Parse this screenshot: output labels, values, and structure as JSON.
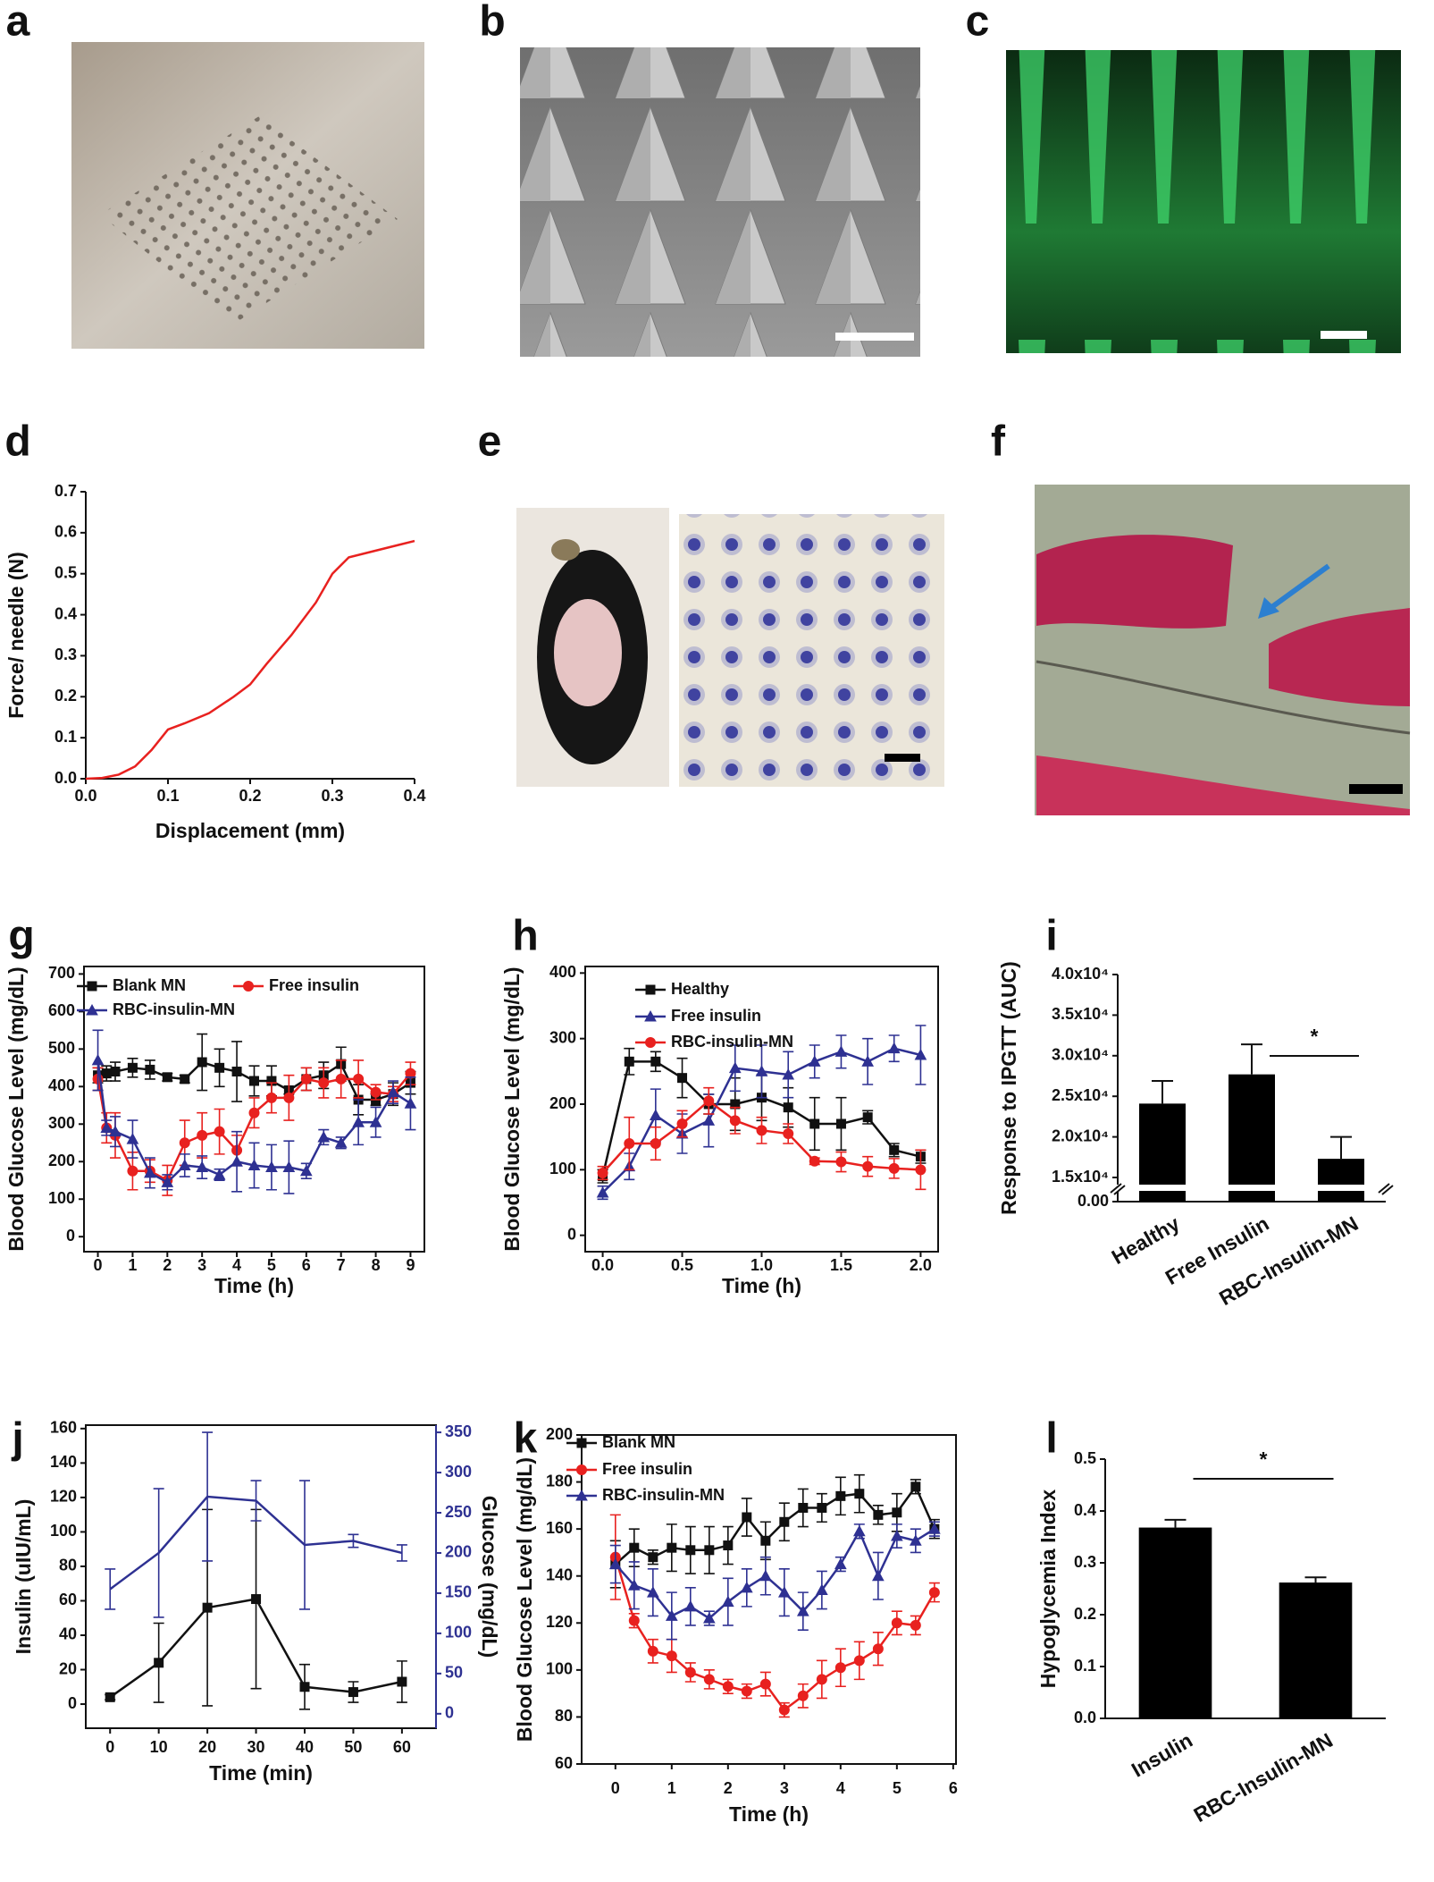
{
  "panel_labels": [
    "a",
    "b",
    "c",
    "d",
    "e",
    "f",
    "g",
    "h",
    "i",
    "j",
    "k",
    "l"
  ],
  "chart_data": [
    {
      "type": "line",
      "xlabel": "Displacement (mm)",
      "ylabel": "Force/ needle (N)",
      "color": "#e8211f",
      "x": [
        0,
        0.02,
        0.04,
        0.06,
        0.08,
        0.1,
        0.12,
        0.15,
        0.18,
        0.2,
        0.22,
        0.25,
        0.28,
        0.3,
        0.32,
        0.35,
        0.38,
        0.4
      ],
      "values": [
        0,
        0.002,
        0.01,
        0.03,
        0.07,
        0.12,
        0.135,
        0.16,
        0.2,
        0.23,
        0.28,
        0.35,
        0.43,
        0.5,
        0.54,
        0.555,
        0.57,
        0.58
      ],
      "xlim": [
        0,
        0.4
      ],
      "ylim": [
        0,
        0.7
      ],
      "xticks": [
        {
          "value": 0,
          "label": "0.0"
        },
        0.1,
        0.2,
        0.3,
        0.4
      ],
      "yticks": [
        {
          "value": 0,
          "label": "0.0"
        },
        0.1,
        0.2,
        0.3,
        0.4,
        0.5,
        0.6,
        0.7
      ]
    },
    {
      "type": "line",
      "xlabel": "Time (h)",
      "ylabel": "Blood Glucose Level (mg/dL)",
      "x": [
        0,
        0.25,
        0.5,
        1,
        1.5,
        2,
        2.5,
        3,
        3.5,
        4,
        4.5,
        5,
        5.5,
        6,
        6.5,
        7,
        7.5,
        8,
        8.5,
        9
      ],
      "series": [
        {
          "name": "Blank MN",
          "color": "#111111",
          "marker": "square",
          "values": [
            430,
            435,
            440,
            450,
            445,
            425,
            420,
            465,
            450,
            440,
            415,
            415,
            390,
            420,
            430,
            460,
            365,
            365,
            380,
            410
          ],
          "errors": [
            20,
            20,
            25,
            25,
            25,
            10,
            10,
            75,
            50,
            80,
            40,
            40,
            10,
            30,
            35,
            45,
            40,
            15,
            30,
            30
          ]
        },
        {
          "name": "Free insulin",
          "color": "#e8211f",
          "marker": "circle",
          "values": [
            420,
            290,
            270,
            175,
            175,
            150,
            250,
            270,
            280,
            230,
            330,
            370,
            370,
            420,
            410,
            420,
            420,
            385,
            380,
            435
          ],
          "errors": [
            30,
            40,
            60,
            50,
            30,
            40,
            60,
            60,
            60,
            40,
            40,
            40,
            60,
            30,
            40,
            50,
            50,
            20,
            20,
            30
          ]
        },
        {
          "name": "RBC-insulin-MN",
          "color": "#2e3192",
          "marker": "triangle",
          "values": [
            470,
            290,
            280,
            260,
            170,
            145,
            190,
            185,
            165,
            200,
            190,
            185,
            185,
            175,
            265,
            250,
            305,
            305,
            385,
            355
          ],
          "errors": [
            80,
            20,
            40,
            50,
            40,
            20,
            30,
            30,
            15,
            80,
            60,
            60,
            70,
            20,
            20,
            15,
            60,
            40,
            30,
            70
          ]
        }
      ],
      "xlim": [
        -0.4,
        9.4
      ],
      "ylim": [
        -40,
        720
      ],
      "xticks": [
        0,
        1,
        2,
        3,
        4,
        5,
        6,
        7,
        8,
        9
      ],
      "yticks": [
        0,
        100,
        200,
        300,
        400,
        500,
        600,
        700
      ]
    },
    {
      "type": "line",
      "xlabel": "Time (h)",
      "ylabel": "Blood Glucose Level (mg/dL)",
      "x": [
        0,
        0.167,
        0.333,
        0.5,
        0.667,
        0.833,
        1,
        1.167,
        1.333,
        1.5,
        1.667,
        1.833,
        2
      ],
      "series": [
        {
          "name": "Healthy",
          "color": "#111111",
          "marker": "square",
          "values": [
            90,
            265,
            265,
            240,
            200,
            200,
            210,
            195,
            170,
            170,
            180,
            130,
            120
          ],
          "errors": [
            10,
            20,
            15,
            30,
            15,
            40,
            35,
            30,
            40,
            40,
            10,
            10,
            10
          ]
        },
        {
          "name": "Free insulin",
          "color": "#2e3192",
          "marker": "triangle",
          "values": [
            65,
            105,
            183,
            155,
            175,
            255,
            250,
            245,
            265,
            280,
            265,
            285,
            275
          ],
          "errors": [
            10,
            20,
            40,
            30,
            40,
            35,
            40,
            35,
            25,
            25,
            35,
            20,
            45
          ]
        },
        {
          "name": "RBC-insulin-MN",
          "color": "#e8211f",
          "marker": "circle",
          "values": [
            95,
            140,
            140,
            170,
            205,
            175,
            160,
            155,
            113,
            112,
            105,
            102,
            100
          ],
          "errors": [
            10,
            40,
            25,
            20,
            20,
            20,
            20,
            15,
            5,
            15,
            15,
            15,
            30
          ]
        }
      ],
      "xlim": [
        -0.11,
        2.11
      ],
      "ylim": [
        -25,
        410
      ],
      "xticks": [
        {
          "value": 0,
          "label": "0.0"
        },
        0.5,
        {
          "value": 1,
          "label": "1.0"
        },
        1.5,
        {
          "value": 2,
          "label": "2.0"
        }
      ],
      "yticks": [
        0,
        100,
        200,
        300,
        400
      ]
    },
    {
      "type": "bar",
      "ylabel": "Response to IPGTT (AUC)",
      "color": "#000000",
      "categories": [
        "Healthy",
        "Free Insulin",
        "RBC-Insulin-MN"
      ],
      "values": [
        24100,
        27700,
        17300
      ],
      "errors": [
        2800,
        3700,
        2700
      ],
      "ylim": [
        15000,
        40000
      ],
      "axis_break": true,
      "yticks": [
        {
          "value": 0,
          "label": "0.00"
        },
        {
          "value": 15000,
          "label": "1.5x10⁴"
        },
        {
          "value": 20000,
          "label": "2.0x10⁴"
        },
        {
          "value": 25000,
          "label": "2.5x10⁴"
        },
        {
          "value": 30000,
          "label": "3.0x10⁴"
        },
        {
          "value": 35000,
          "label": "3.5x10⁴"
        },
        {
          "value": 40000,
          "label": "4.0x10⁴"
        }
      ],
      "annotations": [
        {
          "text": "*"
        }
      ]
    },
    {
      "type": "line",
      "xlabel": "Time (min)",
      "ylabel": "Insulin (uIU/mL)",
      "y2label": "Glucose (mg/dL)",
      "x": [
        0,
        10,
        20,
        30,
        40,
        50,
        60
      ],
      "series": [
        {
          "color": "#111111",
          "marker": "square",
          "values": [
            4,
            24,
            56,
            61,
            10,
            7,
            13
          ],
          "errors": [
            1.5,
            23,
            57,
            52,
            13,
            6,
            12
          ]
        },
        {
          "color": "#2e3192",
          "axis": "y2",
          "values": [
            155,
            200,
            270,
            265,
            210,
            215,
            200
          ],
          "errors": [
            25,
            80,
            80,
            25,
            80,
            8,
            10
          ]
        }
      ],
      "xlim": [
        -5,
        67
      ],
      "ylim": [
        -14,
        162
      ],
      "y2lim": [
        -18,
        359
      ],
      "xticks": [
        0,
        10,
        20,
        30,
        40,
        50,
        60
      ],
      "yticks": [
        0,
        20,
        40,
        60,
        80,
        100,
        120,
        140,
        160
      ],
      "y2ticks": [
        0,
        50,
        100,
        150,
        200,
        250,
        300,
        350
      ]
    },
    {
      "type": "line",
      "xlabel": "Time (h)",
      "ylabel": "Blood Glucose Level (mg/dL)",
      "x": [
        0,
        0.333,
        0.667,
        1,
        1.333,
        1.667,
        2,
        2.333,
        2.667,
        3,
        3.333,
        3.667,
        4,
        4.333,
        4.667,
        5,
        5.333,
        5.667
      ],
      "series": [
        {
          "name": "Blank MN",
          "color": "#111111",
          "marker": "square",
          "values": [
            145,
            152,
            148,
            152,
            151,
            151,
            153,
            165,
            155,
            163,
            169,
            169,
            174,
            175,
            166,
            167,
            178,
            160
          ],
          "errors": [
            10,
            8,
            3,
            10,
            10,
            10,
            8,
            8,
            8,
            8,
            8,
            6,
            8,
            8,
            4,
            8,
            3,
            4
          ]
        },
        {
          "name": "Free insulin",
          "color": "#e8211f",
          "marker": "circle",
          "values": [
            148,
            121,
            108,
            106,
            99,
            96,
            93,
            91,
            94,
            83,
            89,
            96,
            101,
            104,
            109,
            120,
            119,
            133
          ],
          "errors": [
            18,
            3,
            5,
            7,
            4,
            4,
            3,
            3,
            5,
            3,
            5,
            8,
            8,
            8,
            7,
            5,
            4,
            4
          ]
        },
        {
          "name": "RBC-insulin-MN",
          "color": "#2e3192",
          "marker": "triangle",
          "values": [
            145,
            136,
            133,
            123,
            127,
            122,
            129,
            135,
            140,
            133,
            125,
            134,
            145,
            159,
            140,
            157,
            155,
            160
          ],
          "errors": [
            8,
            10,
            10,
            10,
            8,
            3,
            10,
            8,
            8,
            10,
            8,
            8,
            3,
            3,
            10,
            5,
            5,
            3
          ]
        }
      ],
      "xlim": [
        -0.6,
        6.05
      ],
      "ylim": [
        60,
        200
      ],
      "xticks": [
        0,
        1,
        2,
        3,
        4,
        5,
        6
      ],
      "yticks": [
        60,
        80,
        100,
        120,
        140,
        160,
        180,
        200
      ]
    },
    {
      "type": "bar",
      "ylabel": "Hypoglycemia Index",
      "color": "#000000",
      "categories": [
        "Insulin",
        "RBC-Insulin-MN"
      ],
      "values": [
        0.368,
        0.262
      ],
      "errors": [
        0.015,
        0.01
      ],
      "ylim": [
        0,
        0.5
      ],
      "yticks": [
        {
          "value": 0,
          "label": "0.0"
        },
        0.1,
        0.2,
        0.3,
        0.4,
        0.5
      ],
      "annotations": [
        {
          "text": "*"
        }
      ]
    }
  ]
}
